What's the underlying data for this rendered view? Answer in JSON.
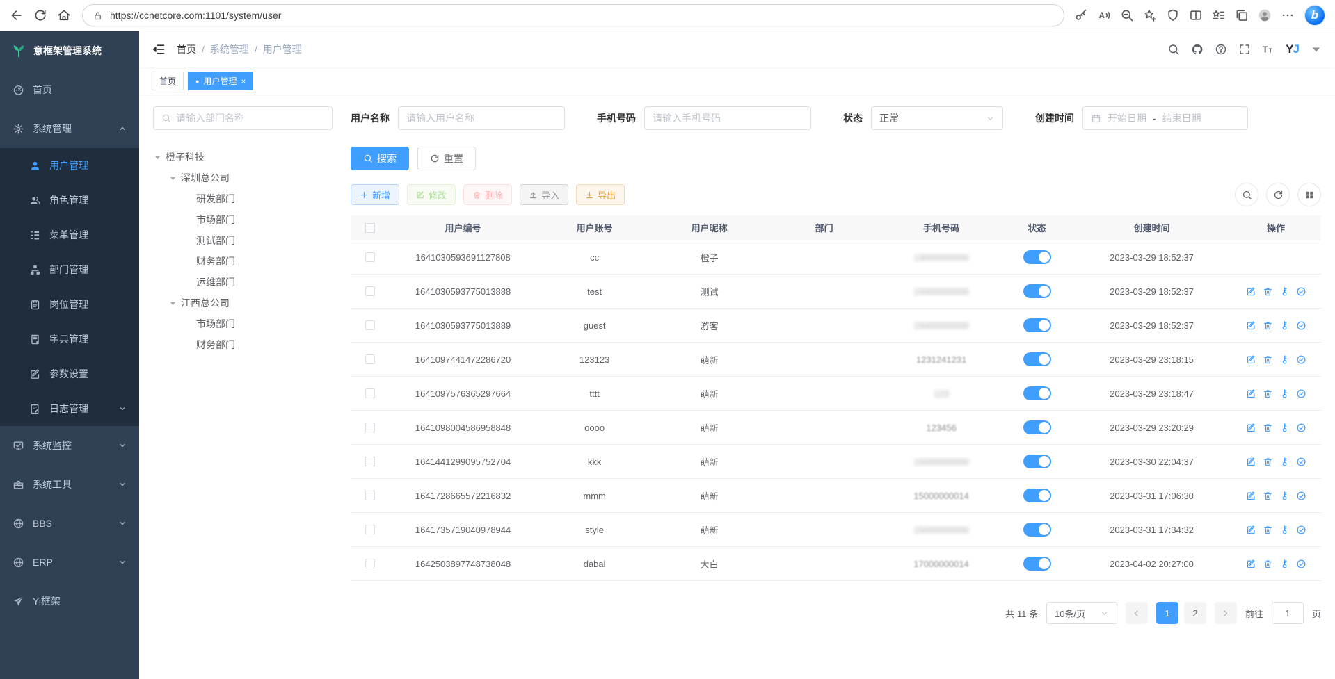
{
  "browser": {
    "url": "https://ccnetcore.com:1101/system/user",
    "nav_icons": [
      "arrow-left",
      "refresh",
      "home"
    ],
    "lock_icon": "lock",
    "right_icons": [
      "key",
      "read-aloud",
      "zoom-out",
      "star-plus",
      "shield",
      "split-screen",
      "favorites",
      "collections",
      "avatar",
      "more-dots"
    ],
    "bing_label": "b"
  },
  "sidebar": {
    "logo_icon": "sprout",
    "logo_title": "意框架管理系统",
    "items": [
      {
        "label": "首页",
        "icon": "gauge"
      },
      {
        "label": "系统管理",
        "icon": "gear",
        "chevron": "up",
        "expanded": true,
        "children": [
          {
            "label": "用户管理",
            "icon": "user",
            "active": true
          },
          {
            "label": "角色管理",
            "icon": "users"
          },
          {
            "label": "菜单管理",
            "icon": "menu-tree"
          },
          {
            "label": "部门管理",
            "icon": "org"
          },
          {
            "label": "岗位管理",
            "icon": "badge"
          },
          {
            "label": "字典管理",
            "icon": "book"
          },
          {
            "label": "参数设置",
            "icon": "edit"
          },
          {
            "label": "日志管理",
            "icon": "log",
            "chevron": "down"
          }
        ]
      },
      {
        "label": "系统监控",
        "icon": "monitor",
        "chevron": "down"
      },
      {
        "label": "系统工具",
        "icon": "toolbox",
        "chevron": "down"
      },
      {
        "label": "BBS",
        "icon": "globe",
        "chevron": "down"
      },
      {
        "label": "ERP",
        "icon": "globe",
        "chevron": "down"
      },
      {
        "label": "Yi框架",
        "icon": "plane"
      }
    ]
  },
  "header": {
    "fold_icon": "fold",
    "breadcrumb": {
      "0": "首页",
      "1": "系统管理",
      "2": "用户管理"
    },
    "separator": "/",
    "right_icons": [
      "search",
      "github",
      "question",
      "expand",
      "font-size"
    ],
    "logo_y": "Y",
    "logo_j": "J"
  },
  "tabs": [
    {
      "label": "首页",
      "active": false
    },
    {
      "label": "用户管理",
      "active": true,
      "dot": "●",
      "close": "×"
    }
  ],
  "dept_panel": {
    "search_placeholder": "请输入部门名称",
    "tree": [
      {
        "label": "橙子科技",
        "level": 0,
        "caret": true
      },
      {
        "label": "深圳总公司",
        "level": 1,
        "caret": true
      },
      {
        "label": "研发部门",
        "level": 2
      },
      {
        "label": "市场部门",
        "level": 2
      },
      {
        "label": "测试部门",
        "level": 2
      },
      {
        "label": "财务部门",
        "level": 2
      },
      {
        "label": "运维部门",
        "level": 2
      },
      {
        "label": "江西总公司",
        "level": 1,
        "caret": true
      },
      {
        "label": "市场部门",
        "level": 2
      },
      {
        "label": "财务部门",
        "level": 2
      }
    ]
  },
  "filters": {
    "user_label": "用户名称",
    "user_placeholder": "请输入用户名称",
    "phone_label": "手机号码",
    "phone_placeholder": "请输入手机号码",
    "status_label": "状态",
    "status_value": "正常",
    "date_label": "创建时间",
    "date_start": "开始日期",
    "date_dash": "-",
    "date_end": "结束日期"
  },
  "actions": {
    "search_label": "搜索",
    "reset_label": "重置"
  },
  "toolbar": {
    "buttons": [
      {
        "label": "新增",
        "icon": "plus",
        "color": "#409eff",
        "bg": "#ecf5ff",
        "border": "#b3d8ff",
        "disabled": false
      },
      {
        "label": "修改",
        "icon": "edit",
        "color": "#67c23a",
        "bg": "#f0f9eb",
        "border": "#c2e7b0",
        "disabled": true
      },
      {
        "label": "删除",
        "icon": "trash",
        "color": "#f56c6c",
        "bg": "#fef0f0",
        "border": "#fbc4c4",
        "disabled": true
      },
      {
        "label": "导入",
        "icon": "upload",
        "color": "#909399",
        "bg": "#f4f4f5",
        "border": "#d3d4d6",
        "disabled": false
      },
      {
        "label": "导出",
        "icon": "download",
        "color": "#e6a23c",
        "bg": "#fdf6ec",
        "border": "#f5dab1",
        "disabled": false
      }
    ],
    "right_icons": [
      "search",
      "refresh",
      "grid"
    ]
  },
  "table": {
    "columns": [
      "用户编号",
      "用户账号",
      "用户昵称",
      "部门",
      "手机号码",
      "状态",
      "创建时间",
      "操作"
    ],
    "action_icons": [
      "edit",
      "trash",
      "key-v",
      "check-circle"
    ],
    "rows": [
      {
        "id": "1641030593691127808",
        "account": "cc",
        "nickname": "橙子",
        "dept": "",
        "phone": "13000000000",
        "phone_blur": "heavy",
        "status": true,
        "created": "2023-03-29 18:52:37",
        "has_actions": false
      },
      {
        "id": "1641030593775013888",
        "account": "test",
        "nickname": "测试",
        "dept": "",
        "phone": "15000000000",
        "phone_blur": "heavy",
        "status": true,
        "created": "2023-03-29 18:52:37",
        "has_actions": true
      },
      {
        "id": "1641030593775013889",
        "account": "guest",
        "nickname": "游客",
        "dept": "",
        "phone": "15000000000",
        "phone_blur": "heavy",
        "status": true,
        "created": "2023-03-29 18:52:37",
        "has_actions": true
      },
      {
        "id": "1641097441472286720",
        "account": "123123",
        "nickname": "萌新",
        "dept": "",
        "phone": "1231241231",
        "phone_blur": "light",
        "status": true,
        "created": "2023-03-29 23:18:15",
        "has_actions": true
      },
      {
        "id": "1641097576365297664",
        "account": "tttt",
        "nickname": "萌新",
        "dept": "",
        "phone": "123",
        "phone_blur": "heavy",
        "status": true,
        "created": "2023-03-29 23:18:47",
        "has_actions": true
      },
      {
        "id": "1641098004586958848",
        "account": "oooo",
        "nickname": "萌新",
        "dept": "",
        "phone": "123456",
        "phone_blur": "light",
        "status": true,
        "created": "2023-03-29 23:20:29",
        "has_actions": true
      },
      {
        "id": "1641441299095752704",
        "account": "kkk",
        "nickname": "萌新",
        "dept": "",
        "phone": "15000000000",
        "phone_blur": "heavy",
        "status": true,
        "created": "2023-03-30 22:04:37",
        "has_actions": true
      },
      {
        "id": "1641728665572216832",
        "account": "mmm",
        "nickname": "萌新",
        "dept": "",
        "phone": "15000000014",
        "phone_blur": "light",
        "status": true,
        "created": "2023-03-31 17:06:30",
        "has_actions": true
      },
      {
        "id": "1641735719040978944",
        "account": "style",
        "nickname": "萌新",
        "dept": "",
        "phone": "15000000000",
        "phone_blur": "heavy",
        "status": true,
        "created": "2023-03-31 17:34:32",
        "has_actions": true
      },
      {
        "id": "1642503897748738048",
        "account": "dabai",
        "nickname": "大白",
        "dept": "",
        "phone": "17000000014",
        "phone_blur": "light",
        "status": true,
        "created": "2023-04-02 20:27:00",
        "has_actions": true
      }
    ]
  },
  "pagination": {
    "total_label": "共 11 条",
    "page_size": "10条/页",
    "pages": [
      "1",
      "2"
    ],
    "active_page": "1",
    "goto_label": "前往",
    "goto_value": "1",
    "page_suffix": "页"
  },
  "colors": {
    "primary": "#409eff",
    "sidebar_bg": "#304156",
    "submenu_bg": "#1f2d3d",
    "logo_green": "#3ac295"
  }
}
